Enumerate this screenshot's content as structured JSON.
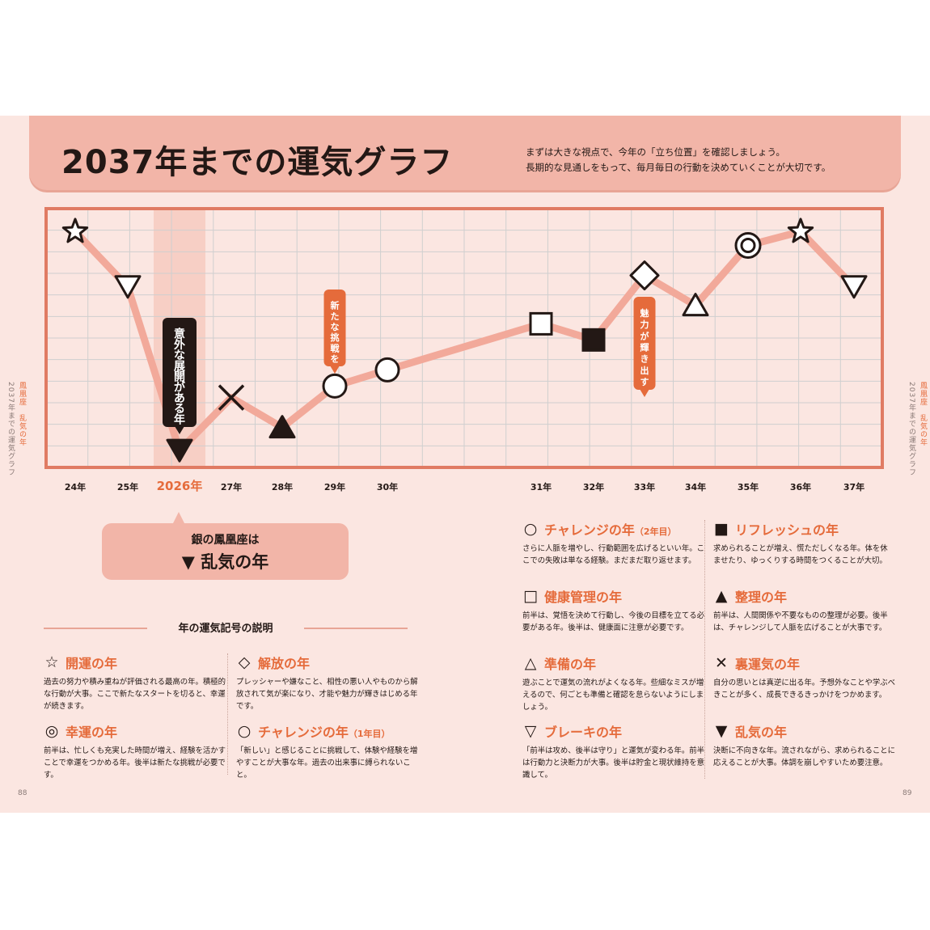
{
  "header": {
    "title": "2037年までの運気グラフ",
    "intro_lines": [
      "まずは大きな視点で、今年の「立ち位置」を確認しましょう。",
      "長期的な見通しをもって、毎月毎日の行動を決めていくことが大切です。"
    ]
  },
  "side": {
    "left_accent": "鳳凰座　乱気の年",
    "left_text": "2037年までの運気グラフ",
    "right_accent": "鳳凰座　乱気の年",
    "right_text": "2037年までの運気グラフ"
  },
  "page_numbers": {
    "left": "88",
    "right": "89"
  },
  "colors": {
    "line": "#f2a99a",
    "frame": "#e07b63",
    "accent": "#e56b3b",
    "dark": "#231815",
    "highlight": "#f7cfc5"
  },
  "chart_data": {
    "type": "line",
    "points": [
      {
        "x": "24年",
        "symbol": "star",
        "level": 9.6
      },
      {
        "x": "25年",
        "symbol": "triangle-down",
        "level": 7.2
      },
      {
        "x": "2026年",
        "symbol": "triangle-down-filled",
        "level": 0.1
      },
      {
        "x": "27年",
        "symbol": "cross",
        "level": 2.4
      },
      {
        "x": "28年",
        "symbol": "triangle-up-filled",
        "level": 1.1
      },
      {
        "x": "29年",
        "symbol": "circle",
        "level": 2.9
      },
      {
        "x": "30年",
        "symbol": "circle",
        "level": 3.6
      },
      {
        "x": "31年",
        "symbol": "square",
        "level": 5.6
      },
      {
        "x": "32年",
        "symbol": "square-filled",
        "level": 4.9
      },
      {
        "x": "33年",
        "symbol": "diamond",
        "level": 7.7
      },
      {
        "x": "34年",
        "symbol": "triangle-up",
        "level": 6.4
      },
      {
        "x": "35年",
        "symbol": "double-circle",
        "level": 9.0
      },
      {
        "x": "36年",
        "symbol": "star",
        "level": 9.6
      },
      {
        "x": "37年",
        "symbol": "triangle-down",
        "level": 7.2
      }
    ],
    "highlight_year": "2026年",
    "annotations": [
      {
        "x": "2026年",
        "text": "意外な展開がある年",
        "style": "dark"
      },
      {
        "x": "29年",
        "text": "新たな挑戦を",
        "style": "accent"
      },
      {
        "x": "33年",
        "text": "魅力が輝き出す",
        "style": "accent"
      }
    ],
    "grid": true
  },
  "callout": {
    "line1": "銀の鳳凰座は",
    "line2": "▼ 乱気の年"
  },
  "legend": {
    "title": "年の運気記号の説明",
    "items": [
      {
        "symbol": "☆",
        "name": "開運の年",
        "desc": "過去の努力や積み重ねが評価される最高の年。積極的な行動が大事。ここで新たなスタートを切ると、幸運が続きます。"
      },
      {
        "symbol": "◎",
        "name": "幸運の年",
        "desc": "前半は、忙しくも充実した時間が増え、経験を活かすことで幸運をつかめる年。後半は新たな挑戦が必要です。"
      },
      {
        "symbol": "◇",
        "name": "解放の年",
        "desc": "プレッシャーや嫌なこと、相性の悪い人やものから解放されて気が楽になり、才能や魅力が輝きはじめる年です。"
      },
      {
        "symbol": "○",
        "name": "チャレンジの年",
        "sub": "（1年目）",
        "desc": "「新しい」と感じることに挑戦して、体験や経験を増やすことが大事な年。過去の出来事に縛られないこと。"
      },
      {
        "symbol": "○",
        "name": "チャレンジの年",
        "sub": "（2年目）",
        "desc": "さらに人脈を増やし、行動範囲を広げるといい年。ここでの失敗は単なる経験。まだまだ取り返せます。"
      },
      {
        "symbol": "□",
        "name": "健康管理の年",
        "desc": "前半は、覚悟を決めて行動し、今後の目標を立てる必要がある年。後半は、健康面に注意が必要です。"
      },
      {
        "symbol": "△",
        "name": "準備の年",
        "desc": "遊ぶことで運気の流れがよくなる年。些細なミスが増えるので、何ごとも準備と確認を怠らないようにしましょう。"
      },
      {
        "symbol": "▽",
        "name": "ブレーキの年",
        "desc": "「前半は攻め、後半は守り」と運気が変わる年。前半は行動力と決断力が大事。後半は貯金と現状維持を意識して。"
      },
      {
        "symbol": "■",
        "name": "リフレッシュの年",
        "desc": "求められることが増え、慌ただしくなる年。体を休ませたり、ゆっくりする時間をつくることが大切。"
      },
      {
        "symbol": "▲",
        "name": "整理の年",
        "desc": "前半は、人間関係や不要なものの整理が必要。後半は、チャレンジして人脈を広げることが大事です。"
      },
      {
        "symbol": "✕",
        "name": "裏運気の年",
        "desc": "自分の思いとは真逆に出る年。予想外なことや学ぶべきことが多く、成長できるきっかけをつかめます。"
      },
      {
        "symbol": "▼",
        "name": "乱気の年",
        "desc": "決断に不向きな年。流されながら、求められることに応えることが大事。体調を崩しやすいため要注意。"
      }
    ]
  }
}
